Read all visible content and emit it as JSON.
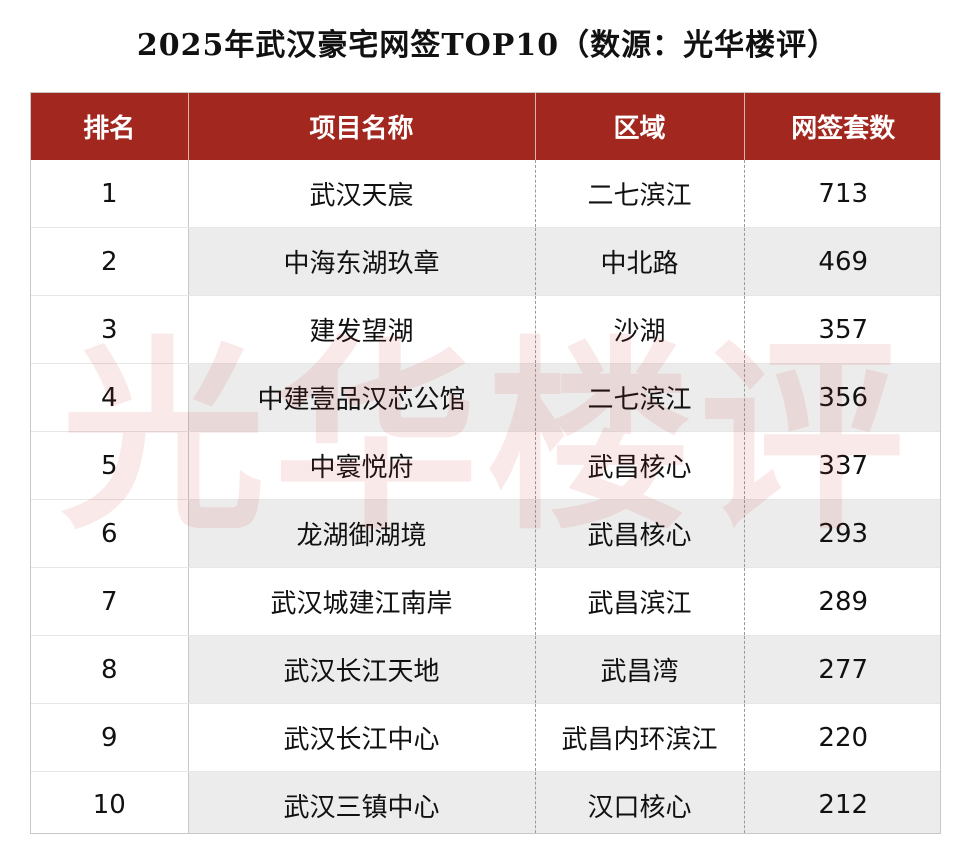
{
  "title": "2025年武汉豪宅网签TOP10（数源：光华楼评）",
  "watermark": "光华楼评",
  "colors": {
    "header_bg": "#a1271f",
    "header_text": "#ffffff",
    "stripe": "#ececec",
    "watermark": "#d22828"
  },
  "headers": {
    "rank": "排名",
    "name": "项目名称",
    "area": "区域",
    "count": "网签套数"
  },
  "rows": [
    {
      "rank": "1",
      "name": "武汉天宸",
      "area": "二七滨江",
      "count": "713"
    },
    {
      "rank": "2",
      "name": "中海东湖玖章",
      "area": "中北路",
      "count": "469"
    },
    {
      "rank": "3",
      "name": "建发望湖",
      "area": "沙湖",
      "count": "357"
    },
    {
      "rank": "4",
      "name": "中建壹品汉芯公馆",
      "area": "二七滨江",
      "count": "356"
    },
    {
      "rank": "5",
      "name": "中寰悦府",
      "area": "武昌核心",
      "count": "337"
    },
    {
      "rank": "6",
      "name": "龙湖御湖境",
      "area": "武昌核心",
      "count": "293"
    },
    {
      "rank": "7",
      "name": "武汉城建江南岸",
      "area": "武昌滨江",
      "count": "289"
    },
    {
      "rank": "8",
      "name": "武汉长江天地",
      "area": "武昌湾",
      "count": "277"
    },
    {
      "rank": "9",
      "name": "武汉长江中心",
      "area": "武昌内环滨江",
      "count": "220"
    },
    {
      "rank": "10",
      "name": "武汉三镇中心",
      "area": "汉口核心",
      "count": "212"
    }
  ]
}
